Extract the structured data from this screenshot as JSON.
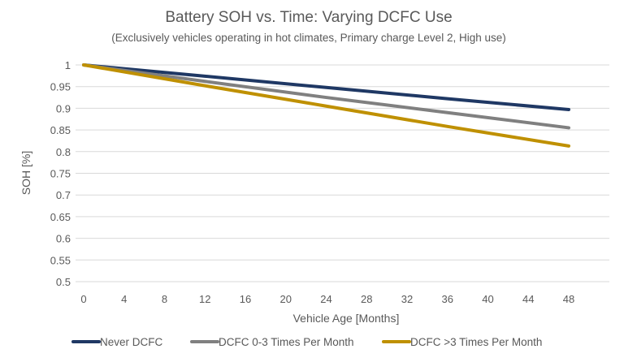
{
  "chart_data": {
    "type": "line",
    "title": "Battery SOH vs. Time: Varying DCFC Use",
    "subtitle": "(Exclusively vehicles operating in hot climates, Primary charge Level 2, High use)",
    "xlabel": "Vehicle Age [Months]",
    "ylabel": "SOH [%]",
    "xlim": [
      0,
      48
    ],
    "ylim": [
      0.5,
      1
    ],
    "x_ticks": [
      "0",
      "4",
      "8",
      "12",
      "16",
      "20",
      "24",
      "28",
      "32",
      "36",
      "40",
      "44",
      "48"
    ],
    "y_ticks": [
      "0.5",
      "0.55",
      "0.6",
      "0.65",
      "0.7",
      "0.75",
      "0.8",
      "0.85",
      "0.9",
      "0.95",
      "1"
    ],
    "grid": true,
    "legend_position": "bottom",
    "x": [
      0,
      12,
      24,
      36,
      48
    ],
    "series": [
      {
        "name": "Never DCFC",
        "color": "#1f3864",
        "values": [
          1,
          0.974,
          0.948,
          0.922,
          0.897
        ]
      },
      {
        "name": "DCFC 0-3 Times Per Month",
        "color": "#808080",
        "values": [
          1,
          0.962,
          0.925,
          0.89,
          0.855
        ]
      },
      {
        "name": "DCFC >3 Times Per Month",
        "color": "#bf9000",
        "values": [
          1,
          0.952,
          0.905,
          0.858,
          0.813
        ]
      }
    ]
  }
}
